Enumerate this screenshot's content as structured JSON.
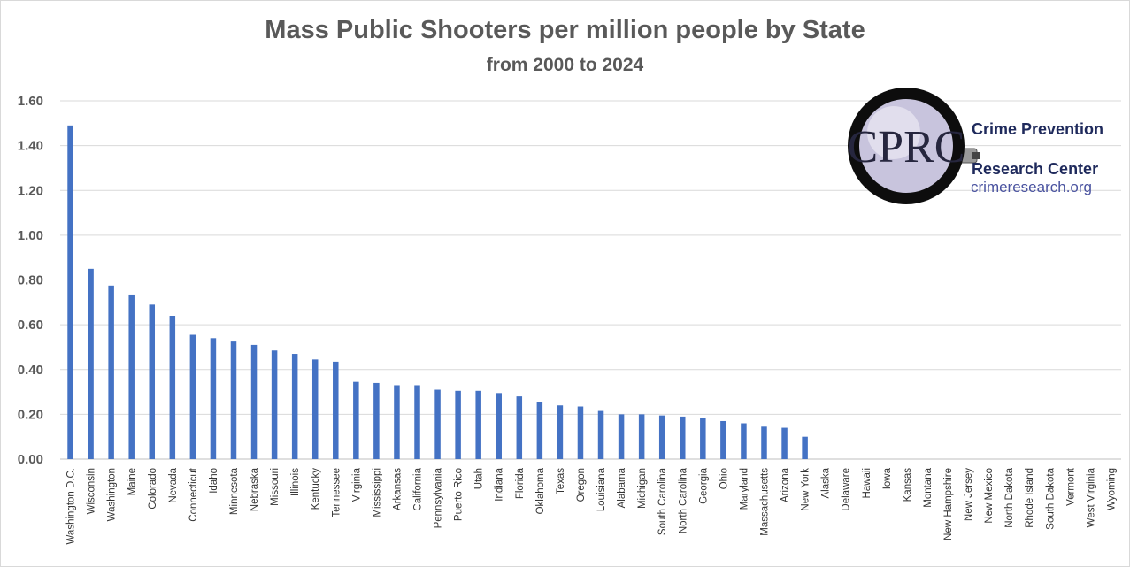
{
  "chart_data": {
    "type": "bar",
    "title": "Mass Public Shooters per million people by State",
    "subtitle": "from 2000 to 2024",
    "xlabel": "",
    "ylabel": "",
    "ylim": [
      0,
      1.6
    ],
    "ytick_step": 0.2,
    "grid": true,
    "bar_color": "#4472c4",
    "categories": [
      "Washington D.C.",
      "Wisconsin",
      "Washington",
      "Maine",
      "Colorado",
      "Nevada",
      "Connecticut",
      "Idaho",
      "Minnesota",
      "Nebraska",
      "Missouri",
      "Illinois",
      "Kentucky",
      "Tennessee",
      "Virginia",
      "Mississippi",
      "Arkansas",
      "California",
      "Pennsylvania",
      "Puerto Rico",
      "Utah",
      "Indiana",
      "Florida",
      "Oklahoma",
      "Texas",
      "Oregon",
      "Louisiana",
      "Alabama",
      "Michigan",
      "South Carolina",
      "North Carolina",
      "Georgia",
      "Ohio",
      "Maryland",
      "Massachusetts",
      "Arizona",
      "New York",
      "Alaska",
      "Delaware",
      "Hawaii",
      "Iowa",
      "Kansas",
      "Montana",
      "New Hampshire",
      "New Jersey",
      "New Mexico",
      "North Dakota",
      "Rhode Island",
      "South Dakota",
      "Vermont",
      "West Virginia",
      "Wyoming"
    ],
    "values": [
      1.49,
      0.85,
      0.775,
      0.735,
      0.69,
      0.64,
      0.555,
      0.54,
      0.525,
      0.51,
      0.485,
      0.47,
      0.445,
      0.435,
      0.345,
      0.34,
      0.33,
      0.33,
      0.31,
      0.305,
      0.305,
      0.295,
      0.28,
      0.255,
      0.24,
      0.235,
      0.215,
      0.2,
      0.2,
      0.195,
      0.19,
      0.185,
      0.17,
      0.16,
      0.145,
      0.14,
      0.1,
      0,
      0,
      0,
      0,
      0,
      0,
      0,
      0,
      0,
      0,
      0,
      0,
      0,
      0,
      0
    ]
  },
  "logo": {
    "monogram": "CPRC",
    "line1": "Crime Prevention",
    "line2": "Research Center",
    "url": "crimeresearch.org"
  }
}
